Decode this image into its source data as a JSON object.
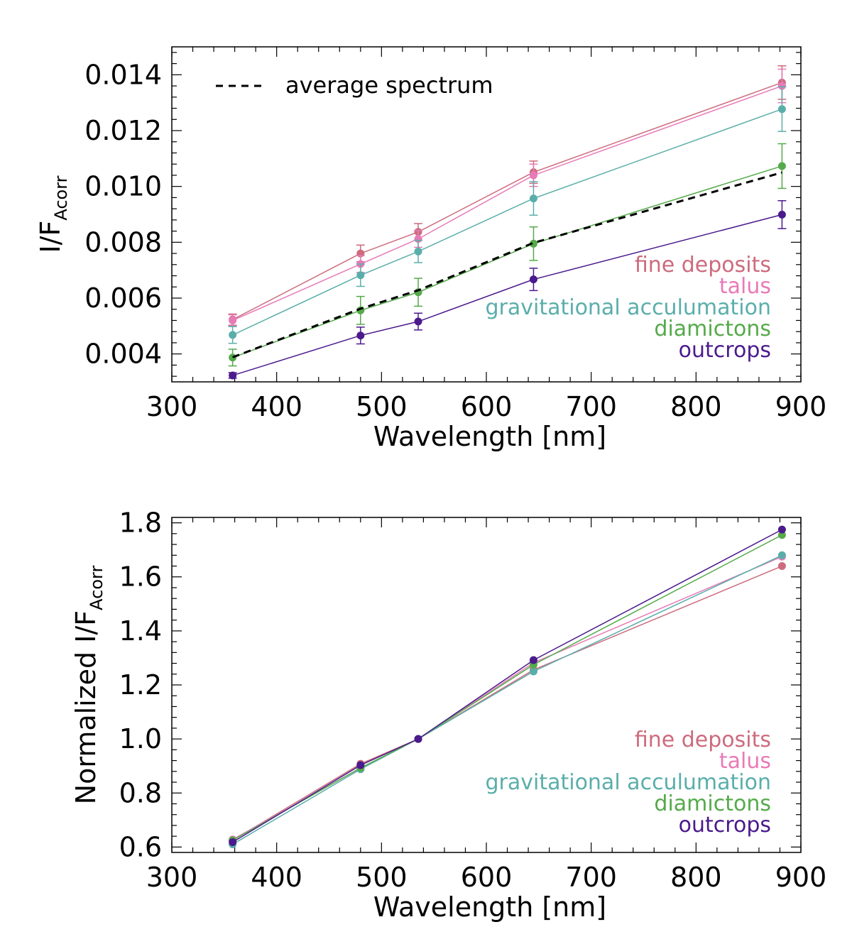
{
  "chart_data": [
    {
      "type": "line",
      "xlabel": "Wavelength [nm]",
      "ylabel_main": "I/F",
      "ylabel_sub": "Acorr",
      "xlim": [
        300,
        900
      ],
      "ylim": [
        0.003,
        0.015
      ],
      "xticks": [
        300,
        400,
        500,
        600,
        700,
        800,
        900
      ],
      "xtick_labels": [
        "300",
        "400",
        "500",
        "600",
        "700",
        "800",
        "900"
      ],
      "yticks": [
        0.004,
        0.006,
        0.008,
        0.01,
        0.012,
        0.014
      ],
      "ytick_labels": [
        "0.004",
        "0.006",
        "0.008",
        "0.010",
        "0.012",
        "0.014"
      ],
      "x": [
        358,
        480,
        535,
        645,
        882
      ],
      "series": [
        {
          "name": "fine deposits",
          "color": "#cd6b7d",
          "values": [
            0.00523,
            0.0076,
            0.00837,
            0.01051,
            0.01372
          ],
          "errors": [
            0.0002,
            0.0003,
            0.0003,
            0.0004,
            0.0006
          ]
        },
        {
          "name": "talus",
          "color": "#e87ab7",
          "values": [
            0.0052,
            0.00722,
            0.00812,
            0.0104,
            0.0136
          ],
          "errors": [
            0.0002,
            0.0003,
            0.0003,
            0.0004,
            0.0006
          ]
        },
        {
          "name": "gravitational acculumation",
          "color": "#5aaeaa",
          "values": [
            0.00468,
            0.00682,
            0.00767,
            0.00957,
            0.01277
          ],
          "errors": [
            0.0003,
            0.0004,
            0.0004,
            0.0006,
            0.0008
          ]
        },
        {
          "name": "diamictons",
          "color": "#55aa4a",
          "values": [
            0.00387,
            0.00556,
            0.00621,
            0.00795,
            0.01073
          ],
          "errors": [
            0.0003,
            0.0005,
            0.0005,
            0.0006,
            0.0008
          ]
        },
        {
          "name": "outcrops",
          "color": "#4b1a8c",
          "values": [
            0.00323,
            0.00466,
            0.00516,
            0.00667,
            0.00899
          ],
          "errors": [
            0.0001,
            0.0003,
            0.0003,
            0.0004,
            0.0005
          ]
        }
      ],
      "average": {
        "name": "average spectrum",
        "color": "#000000",
        "values": [
          0.00388,
          0.00562,
          0.00628,
          0.00798,
          0.0105
        ]
      },
      "legend": [
        "fine deposits",
        "talus",
        "gravitational acculumation",
        "diamictons",
        "outcrops"
      ]
    },
    {
      "type": "line",
      "xlabel": "Wavelength [nm]",
      "ylabel_main": "Normalized I/F",
      "ylabel_sub": "Acorr",
      "xlim": [
        300,
        900
      ],
      "ylim": [
        0.58,
        1.82
      ],
      "xticks": [
        300,
        400,
        500,
        600,
        700,
        800,
        900
      ],
      "xtick_labels": [
        "300",
        "400",
        "500",
        "600",
        "700",
        "800",
        "900"
      ],
      "yticks": [
        0.6,
        0.8,
        1.0,
        1.2,
        1.4,
        1.6,
        1.8
      ],
      "ytick_labels": [
        "0.6",
        "0.8",
        "1.0",
        "1.2",
        "1.4",
        "1.6",
        "1.8"
      ],
      "x": [
        358,
        480,
        535,
        645,
        882
      ],
      "series": [
        {
          "name": "fine deposits",
          "color": "#cd6b7d",
          "values": [
            0.625,
            0.908,
            1.0,
            1.256,
            1.64
          ]
        },
        {
          "name": "talus",
          "color": "#e87ab7",
          "values": [
            0.628,
            0.892,
            1.0,
            1.282,
            1.675
          ]
        },
        {
          "name": "gravitational acculumation",
          "color": "#5aaeaa",
          "values": [
            0.61,
            0.888,
            1.0,
            1.25,
            1.68
          ]
        },
        {
          "name": "diamictons",
          "color": "#55aa4a",
          "values": [
            0.625,
            0.893,
            1.0,
            1.275,
            1.755
          ]
        },
        {
          "name": "outcrops",
          "color": "#4b1a8c",
          "values": [
            0.618,
            0.903,
            1.0,
            1.292,
            1.775
          ]
        }
      ],
      "legend": [
        "fine deposits",
        "talus",
        "gravitational acculumation",
        "diamictons",
        "outcrops"
      ]
    }
  ]
}
